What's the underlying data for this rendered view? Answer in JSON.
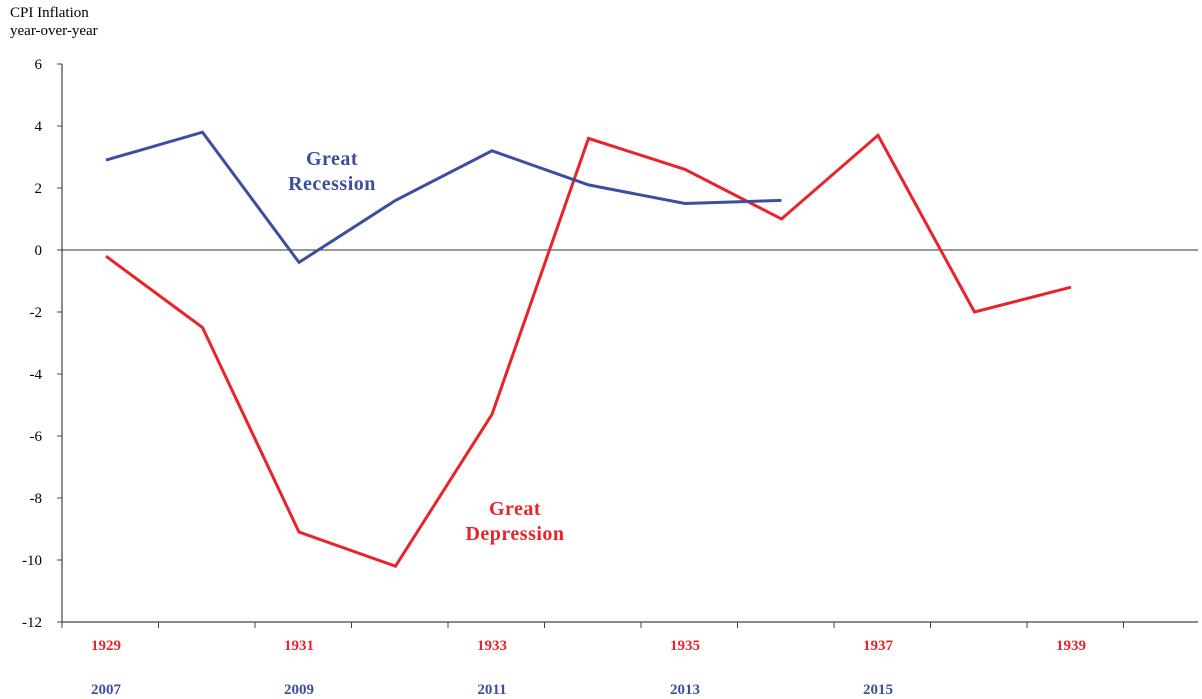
{
  "chart_data": {
    "type": "line",
    "ylabel_line1": "CPI Inflation",
    "ylabel_line2": "year-over-year",
    "ylim": [
      -12,
      6
    ],
    "y_ticks": [
      6,
      4,
      2,
      0,
      -2,
      -4,
      -6,
      -8,
      -10,
      -12
    ],
    "x_ticks_top": [
      "1929",
      "1931",
      "1933",
      "1935",
      "1937",
      "1939"
    ],
    "x_ticks_bottom": [
      "2007",
      "2009",
      "2011",
      "2013",
      "2015"
    ],
    "series": [
      {
        "name": "Great Depression",
        "label_line1": "Great",
        "label_line2": "Depression",
        "color": "#e8232a",
        "x": [
          "1929",
          "1930",
          "1931",
          "1932",
          "1933",
          "1934",
          "1935",
          "1936",
          "1937",
          "1938",
          "1939"
        ],
        "values": [
          -0.2,
          -2.5,
          -9.1,
          -10.2,
          -5.3,
          3.6,
          2.6,
          1.0,
          3.7,
          -2.0,
          -1.2
        ]
      },
      {
        "name": "Great Recession",
        "label_line1": "Great",
        "label_line2": "Recession",
        "color": "#3d4ea0",
        "x": [
          "2007",
          "2008",
          "2009",
          "2010",
          "2011",
          "2012",
          "2013",
          "2014"
        ],
        "values": [
          2.9,
          3.8,
          -0.4,
          1.6,
          3.2,
          2.1,
          1.5,
          1.6
        ]
      }
    ],
    "grid": false,
    "legend": "none"
  }
}
